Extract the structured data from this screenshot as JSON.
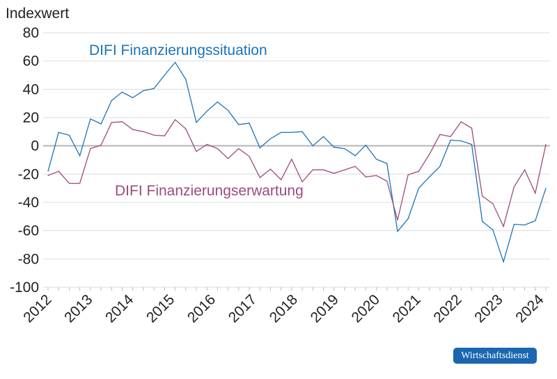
{
  "chart_data": {
    "type": "line",
    "ylabel": "Indexwert",
    "ylim": [
      -100,
      80
    ],
    "yticks": [
      80,
      60,
      40,
      20,
      0,
      -20,
      -40,
      -60,
      -80,
      -100
    ],
    "xtick_labels": [
      "2012",
      "2013",
      "2014",
      "2015",
      "2016",
      "2017",
      "2018",
      "2019",
      "2020",
      "2021",
      "2022",
      "2023",
      "2024"
    ],
    "grid": true,
    "x": [
      "2012Q1",
      "2012Q2",
      "2012Q3",
      "2012Q4",
      "2013Q1",
      "2013Q2",
      "2013Q3",
      "2013Q4",
      "2014Q1",
      "2014Q2",
      "2014Q3",
      "2014Q4",
      "2015Q1",
      "2015Q2",
      "2015Q3",
      "2015Q4",
      "2016Q1",
      "2016Q2",
      "2016Q3",
      "2016Q4",
      "2017Q1",
      "2017Q2",
      "2017Q3",
      "2017Q4",
      "2018Q1",
      "2018Q2",
      "2018Q3",
      "2018Q4",
      "2019Q1",
      "2019Q2",
      "2019Q3",
      "2019Q4",
      "2020Q1",
      "2020Q2",
      "2020Q3",
      "2020Q4",
      "2021Q1",
      "2021Q2",
      "2021Q3",
      "2021Q4",
      "2022Q1",
      "2022Q2",
      "2022Q3",
      "2022Q4",
      "2023Q1",
      "2023Q2",
      "2023Q3",
      "2023Q4"
    ],
    "series": [
      {
        "name": "DIFI Finanzierungssituation",
        "color": "#1a73b8",
        "values": [
          -18,
          9.5,
          7.5,
          -7,
          19,
          15.5,
          32,
          38,
          34,
          39,
          40.5,
          50,
          59,
          47,
          16.5,
          24.5,
          31,
          25,
          15,
          16,
          -1.5,
          5,
          9.5,
          9.5,
          10,
          0,
          6.5,
          -1,
          -2,
          -7,
          0.5,
          -9.5,
          -12.5,
          -60.5,
          -51.5,
          -30,
          -22,
          -14.5,
          4,
          3.5,
          1,
          -53.5,
          -59.5,
          -82,
          -55.5,
          -56,
          -53,
          -30
        ]
      },
      {
        "name": "DIFI Finanzierungserwartung",
        "color": "#9c4a7f",
        "values": [
          -21,
          -18,
          -26.5,
          -26.5,
          -2,
          0.5,
          16.5,
          17,
          11.5,
          10,
          7.5,
          7,
          18.5,
          12,
          -4,
          1,
          -2,
          -9,
          -2,
          -7.5,
          -22.5,
          -16.5,
          -24,
          -9.5,
          -25.5,
          -17,
          -17,
          -19.5,
          -17,
          -14.5,
          -22,
          -21,
          -25,
          -52.5,
          -20.5,
          -18,
          -6,
          8,
          6.5,
          17,
          12.5,
          -35.5,
          -41,
          -57,
          -29,
          -17,
          -33.5,
          1
        ]
      }
    ]
  },
  "logo": "Wirtschaftsdienst"
}
